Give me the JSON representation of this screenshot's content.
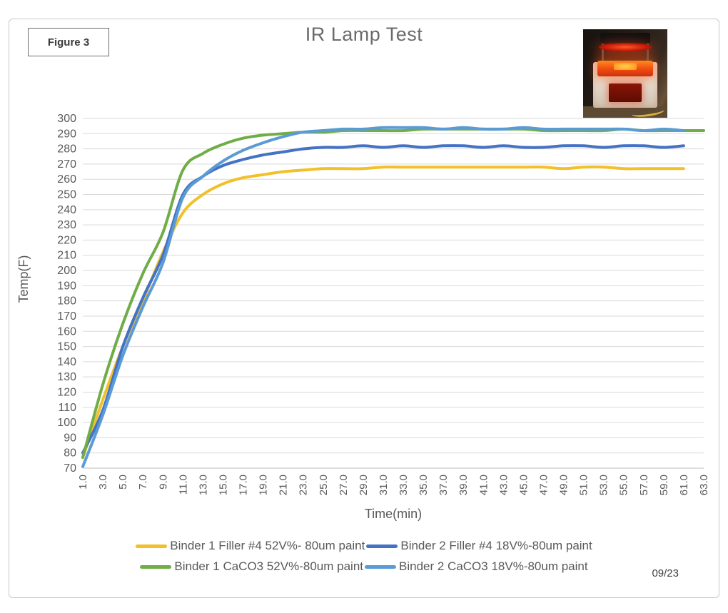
{
  "figure_label": "Figure 3",
  "title": "IR Lamp Test",
  "date_note": "09/23",
  "colors": {
    "yellow": "#F2C029",
    "dark_blue": "#4472C4",
    "green": "#70AD47",
    "light_blue": "#5B9BD5",
    "grid": "#d9d9d9",
    "axis": "#bfbfbf",
    "text": "#595959"
  },
  "chart_data": {
    "type": "line",
    "title": "IR Lamp Test",
    "xlabel": "Time(min)",
    "ylabel": "Temp(F)",
    "xlim": [
      1,
      63
    ],
    "ylim": [
      70,
      300
    ],
    "grid": "horizontal",
    "legend_position": "bottom",
    "x_ticks": [
      1,
      3,
      5,
      7,
      9,
      11,
      13,
      15,
      17,
      19,
      21,
      23,
      25,
      27,
      29,
      31,
      33,
      35,
      37,
      39,
      41,
      43,
      45,
      47,
      49,
      51,
      53,
      55,
      57,
      59,
      61,
      63
    ],
    "x_tick_labels": [
      "1.0",
      "3.0",
      "5.0",
      "7.0",
      "9.0",
      "11.0",
      "13.0",
      "15.0",
      "17.0",
      "19.0",
      "21.0",
      "23.0",
      "25.0",
      "27.0",
      "29.0",
      "31.0",
      "33.0",
      "35.0",
      "37.0",
      "39.0",
      "41.0",
      "43.0",
      "45.0",
      "47.0",
      "49.0",
      "51.0",
      "53.0",
      "55.0",
      "57.0",
      "59.0",
      "61.0",
      "63.0"
    ],
    "y_ticks": [
      70,
      80,
      90,
      100,
      110,
      120,
      130,
      140,
      150,
      160,
      170,
      180,
      190,
      200,
      210,
      220,
      230,
      240,
      250,
      260,
      270,
      280,
      290,
      300
    ],
    "series": [
      {
        "name": "Binder 1 Filler #4 52V%- 80um paint",
        "color": "#F2C029",
        "x_start": 1,
        "x_step": 2,
        "values": [
          77,
          115,
          150,
          180,
          212,
          238,
          250,
          257,
          261,
          263,
          265,
          266,
          267,
          267,
          267,
          268,
          268,
          268,
          268,
          268,
          268,
          268,
          268,
          268,
          267,
          268,
          268,
          267,
          267,
          267,
          267
        ]
      },
      {
        "name": "Binder 2 Filler #4 18V%-80um paint",
        "color": "#4472C4",
        "x_start": 1,
        "x_step": 2,
        "values": [
          80,
          108,
          150,
          182,
          210,
          250,
          262,
          269,
          273,
          276,
          278,
          280,
          281,
          281,
          282,
          281,
          282,
          281,
          282,
          282,
          281,
          282,
          281,
          281,
          282,
          282,
          281,
          282,
          282,
          281,
          282
        ]
      },
      {
        "name": "Binder 1 CaCO3 52V%-80um paint",
        "color": "#70AD47",
        "x_start": 1,
        "x_step": 2,
        "values": [
          77,
          125,
          165,
          198,
          225,
          266,
          277,
          283,
          287,
          289,
          290,
          291,
          291,
          292,
          292,
          292,
          292,
          293,
          293,
          293,
          293,
          293,
          293,
          292,
          292,
          292,
          292,
          293,
          292,
          292,
          292,
          292
        ]
      },
      {
        "name": "Binder 2 CaCO3 18V%-80um paint",
        "color": "#5B9BD5",
        "x_start": 1,
        "x_step": 2,
        "values": [
          71,
          105,
          144,
          176,
          205,
          248,
          262,
          272,
          279,
          284,
          288,
          291,
          292,
          293,
          293,
          294,
          294,
          294,
          293,
          294,
          293,
          293,
          294,
          293,
          293,
          293,
          293,
          293,
          292,
          293,
          292
        ]
      }
    ]
  },
  "legend": {
    "items": [
      {
        "label": "Binder 1 Filler #4 52V%- 80um paint",
        "color": "#F2C029"
      },
      {
        "label": "Binder 2 Filler #4 18V%-80um paint",
        "color": "#4472C4"
      },
      {
        "label": "Binder 1 CaCO3 52V%-80um paint",
        "color": "#70AD47"
      },
      {
        "label": "Binder 2 CaCO3 18V%-80um paint",
        "color": "#5B9BD5"
      }
    ]
  }
}
